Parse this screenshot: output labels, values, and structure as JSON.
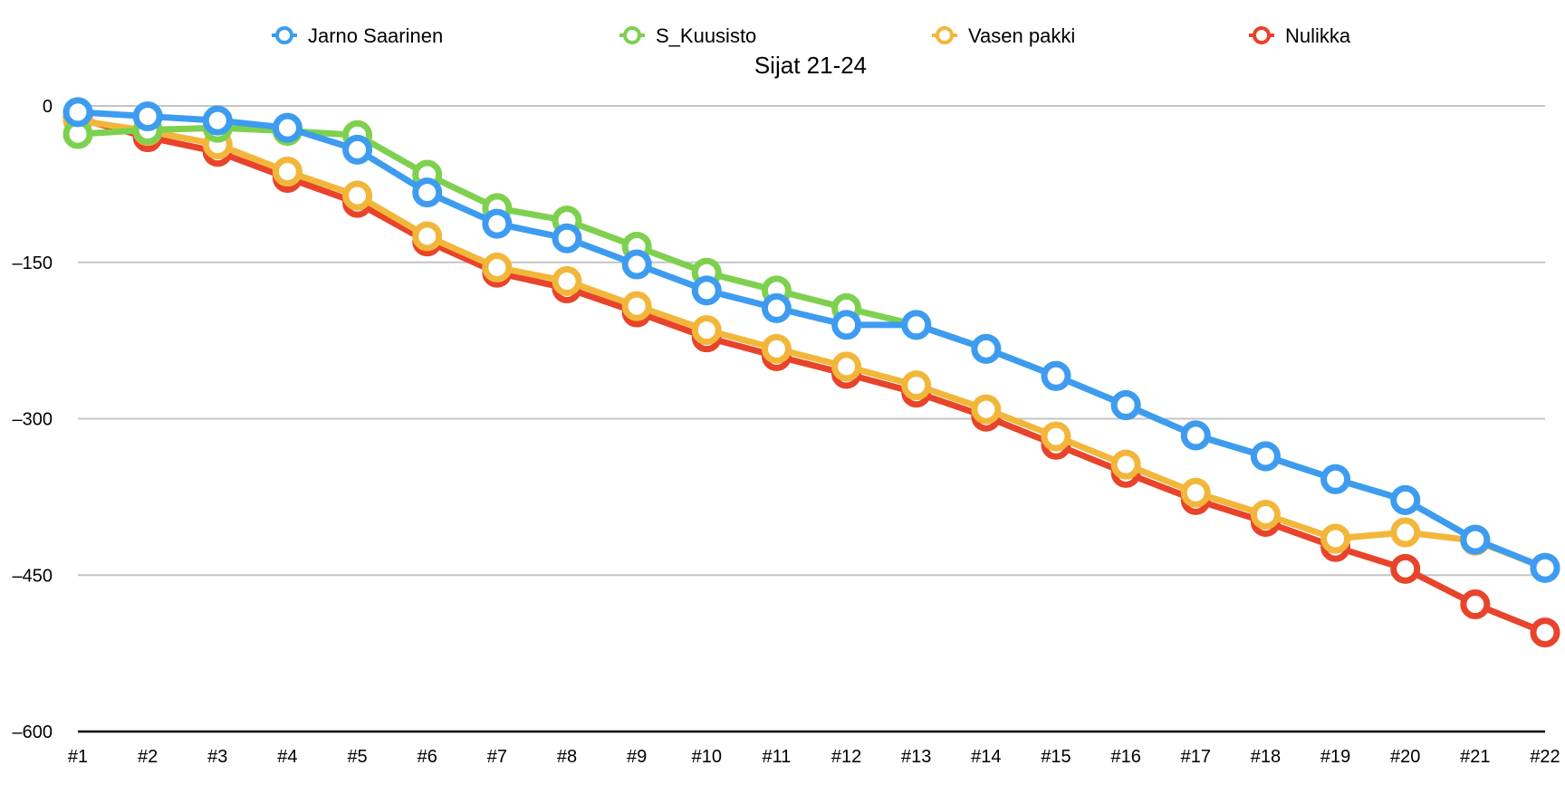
{
  "chart_data": {
    "type": "line",
    "title": "Sijat 21-24",
    "xlabel": "",
    "ylabel": "",
    "categories": [
      "#1",
      "#2",
      "#3",
      "#4",
      "#5",
      "#6",
      "#7",
      "#8",
      "#9",
      "#10",
      "#11",
      "#12",
      "#13",
      "#14",
      "#15",
      "#16",
      "#17",
      "#18",
      "#19",
      "#20",
      "#21",
      "#22"
    ],
    "ylim": [
      -600,
      0
    ],
    "yticks": [
      0,
      -150,
      -300,
      -450,
      -600
    ],
    "ytick_labels": [
      "0",
      "–150",
      "–300",
      "–450",
      "–600"
    ],
    "grid": true,
    "legend_position": "top",
    "series": [
      {
        "name": "Nulikka",
        "color": "#e8432b",
        "values": [
          -12,
          -30,
          -44,
          -69,
          -93,
          -130,
          -160,
          -175,
          -198,
          -222,
          -240,
          -257,
          -275,
          -298,
          -325,
          -352,
          -378,
          -399,
          -423,
          -444,
          -478,
          -505
        ]
      },
      {
        "name": "Vasen pakki",
        "color": "#f2b73a",
        "values": [
          -14,
          -24,
          -37,
          -63,
          -86,
          -125,
          -155,
          -168,
          -192,
          -215,
          -233,
          -250,
          -268,
          -291,
          -317,
          -344,
          -371,
          -392,
          -415,
          -409,
          -417,
          -443
        ]
      },
      {
        "name": "S_Kuusisto",
        "color": "#7ed04f",
        "values": [
          -27,
          -23,
          -21,
          -24,
          -28,
          -66,
          -98,
          -110,
          -135,
          -160,
          -177,
          -194,
          -210,
          -233,
          -259,
          -287,
          -316,
          -336,
          -358,
          -378,
          -416,
          -443
        ]
      },
      {
        "name": "Jarno Saarinen",
        "color": "#3d9cf0",
        "values": [
          -6,
          -10,
          -14,
          -21,
          -42,
          -83,
          -113,
          -127,
          -152,
          -177,
          -194,
          -210,
          -210,
          -233,
          -259,
          -287,
          -316,
          -336,
          -358,
          -378,
          -416,
          -443
        ]
      }
    ]
  }
}
